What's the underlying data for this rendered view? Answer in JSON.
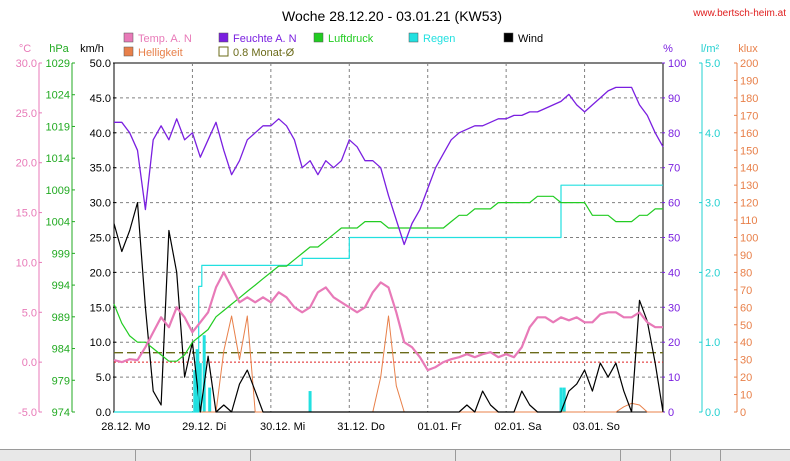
{
  "watermark": "www.bertsch-heim.at",
  "colors": {
    "temp": "#e87ab8",
    "humidity": "#7a1fe0",
    "pressure": "#22cc22",
    "rain": "#22e0e0",
    "wind": "#000000",
    "brightness": "#e8804a",
    "monthavg": "#6b6b1a",
    "grid": "#808080",
    "refline": "#e02020"
  },
  "axis_titles": {
    "temp": "°C",
    "pressure": "hPa",
    "wind": "km/h",
    "humidity": "%",
    "rain": "l/m²",
    "brightness": "klux"
  },
  "chart_data": {
    "type": "line",
    "title": "Woche 28.12.20 - 03.01.21 (KW53)",
    "legend": [
      {
        "key": "temp",
        "label": "Temp. A. N",
        "marker": "filled"
      },
      {
        "key": "humidity",
        "label": "Feuchte A. N",
        "marker": "filled"
      },
      {
        "key": "pressure",
        "label": "Luftdruck",
        "marker": "filled"
      },
      {
        "key": "rain",
        "label": "Regen",
        "marker": "filled"
      },
      {
        "key": "wind",
        "label": "Wind",
        "marker": "filled"
      },
      {
        "key": "brightness",
        "label": "Helligkeit",
        "marker": "filled"
      },
      {
        "key": "monthavg",
        "label": "0.8 Monat-Ø",
        "marker": "outline"
      }
    ],
    "x_ticks": [
      "28.12. Mo",
      "29.12. Di",
      "30.12. Mi",
      "31.12. Do",
      "01.01. Fr",
      "02.01. Sa",
      "03.01. So"
    ],
    "axes": {
      "temp": {
        "range": [
          -5.0,
          30.0
        ],
        "ticks": [
          "30.0",
          "25.0",
          "20.0",
          "15.0",
          "10.0",
          "5.0",
          "0.0",
          "-5.0"
        ]
      },
      "pressure": {
        "range": [
          974,
          1029
        ],
        "ticks": [
          "1029",
          "1024",
          "1019",
          "1014",
          "1009",
          "1004",
          "999",
          "994",
          "989",
          "984",
          "979",
          "974"
        ]
      },
      "wind": {
        "range": [
          0.0,
          50.0
        ],
        "ticks": [
          "50.0",
          "45.0",
          "40.0",
          "35.0",
          "30.0",
          "25.0",
          "20.0",
          "15.0",
          "10.0",
          "5.0",
          "0.0"
        ]
      },
      "humidity": {
        "range": [
          0,
          100
        ],
        "ticks": [
          "100",
          "90",
          "80",
          "70",
          "60",
          "50",
          "40",
          "30",
          "20",
          "10",
          "0"
        ]
      },
      "rain": {
        "range": [
          0.0,
          5.0
        ],
        "ticks": [
          "5.0",
          "4.0",
          "3.0",
          "2.0",
          "1.0",
          "0.0"
        ]
      },
      "brightness": {
        "range": [
          0,
          200
        ],
        "ticks": [
          "200",
          "190",
          "180",
          "170",
          "160",
          "150",
          "140",
          "130",
          "120",
          "110",
          "100",
          "90",
          "80",
          "70",
          "60",
          "50",
          "40",
          "30",
          "20",
          "10",
          "0"
        ]
      }
    },
    "grid": true,
    "reference_lines": {
      "temp_zero": 0.0,
      "monthly_avg_wind": 8.5
    },
    "series": [
      {
        "key": "humidity",
        "axis": "humidity",
        "x_days": [
          0,
          0.1,
          0.2,
          0.3,
          0.4,
          0.5,
          0.6,
          0.7,
          0.8,
          0.9,
          1.0,
          1.1,
          1.2,
          1.3,
          1.4,
          1.5,
          1.6,
          1.7,
          1.8,
          1.9,
          2.0,
          2.1,
          2.2,
          2.3,
          2.4,
          2.5,
          2.6,
          2.7,
          2.8,
          2.9,
          3.0,
          3.1,
          3.2,
          3.3,
          3.4,
          3.5,
          3.6,
          3.7,
          3.8,
          3.9,
          4.0,
          4.1,
          4.2,
          4.3,
          4.4,
          4.5,
          4.6,
          4.7,
          4.8,
          4.9,
          5.0,
          5.1,
          5.2,
          5.3,
          5.4,
          5.5,
          5.6,
          5.7,
          5.8,
          5.9,
          6.0,
          6.1,
          6.2,
          6.3,
          6.4,
          6.5,
          6.6,
          6.7,
          6.8,
          6.9,
          7.0
        ],
        "values": [
          83,
          83,
          80,
          75,
          58,
          78,
          82,
          78,
          84,
          78,
          80,
          73,
          78,
          83,
          75,
          68,
          72,
          78,
          80,
          82,
          82,
          84,
          82,
          78,
          70,
          72,
          68,
          72,
          70,
          72,
          78,
          76,
          72,
          72,
          70,
          62,
          55,
          48,
          54,
          58,
          64,
          70,
          74,
          78,
          80,
          81,
          82,
          82,
          83,
          84,
          84,
          85,
          85,
          86,
          86,
          87,
          88,
          89,
          91,
          88,
          86,
          88,
          90,
          92,
          93,
          93,
          93,
          88,
          85,
          80,
          76
        ]
      },
      {
        "key": "pressure",
        "axis": "pressure",
        "x_days": [
          0,
          0.1,
          0.2,
          0.3,
          0.4,
          0.5,
          0.6,
          0.7,
          0.8,
          0.9,
          1.0,
          1.1,
          1.2,
          1.3,
          1.4,
          1.5,
          1.6,
          1.7,
          1.8,
          1.9,
          2.0,
          2.1,
          2.2,
          2.3,
          2.4,
          2.5,
          2.6,
          2.7,
          2.8,
          2.9,
          3.0,
          3.1,
          3.2,
          3.3,
          3.4,
          3.5,
          3.6,
          3.7,
          3.8,
          3.9,
          4.0,
          4.1,
          4.2,
          4.3,
          4.4,
          4.5,
          4.6,
          4.7,
          4.8,
          4.9,
          5.0,
          5.1,
          5.2,
          5.3,
          5.4,
          5.5,
          5.6,
          5.7,
          5.8,
          5.9,
          6.0,
          6.1,
          6.2,
          6.3,
          6.4,
          6.5,
          6.6,
          6.7,
          6.8,
          6.9,
          7.0
        ],
        "values": [
          991,
          988,
          986,
          985,
          985,
          984,
          983,
          982,
          982,
          983,
          985,
          986,
          987,
          989,
          990,
          991,
          992,
          993,
          994,
          995,
          996,
          997,
          997,
          998,
          999,
          1000,
          1000,
          1001,
          1002,
          1003,
          1003,
          1003,
          1004,
          1004,
          1004,
          1003,
          1003,
          1003,
          1003,
          1003,
          1003,
          1003,
          1003,
          1004,
          1005,
          1005,
          1006,
          1006,
          1006,
          1007,
          1007,
          1007,
          1007,
          1007,
          1008,
          1008,
          1008,
          1007,
          1007,
          1007,
          1007,
          1005,
          1005,
          1005,
          1004,
          1004,
          1004,
          1005,
          1005,
          1006,
          1006
        ]
      },
      {
        "key": "temp",
        "axis": "temp",
        "x_days": [
          0,
          0.1,
          0.2,
          0.3,
          0.4,
          0.5,
          0.6,
          0.7,
          0.8,
          0.9,
          1.0,
          1.1,
          1.2,
          1.3,
          1.4,
          1.5,
          1.6,
          1.7,
          1.8,
          1.9,
          2.0,
          2.1,
          2.2,
          2.3,
          2.4,
          2.5,
          2.6,
          2.7,
          2.8,
          2.9,
          3.0,
          3.1,
          3.2,
          3.3,
          3.4,
          3.5,
          3.6,
          3.7,
          3.8,
          3.9,
          4.0,
          4.1,
          4.2,
          4.3,
          4.4,
          4.5,
          4.6,
          4.7,
          4.8,
          4.9,
          5.0,
          5.1,
          5.2,
          5.3,
          5.4,
          5.5,
          5.6,
          5.7,
          5.8,
          5.9,
          6.0,
          6.1,
          6.2,
          6.3,
          6.4,
          6.5,
          6.6,
          6.7,
          6.8,
          6.9,
          7.0
        ],
        "values": [
          0.2,
          0.0,
          0.3,
          0.2,
          1.5,
          3.0,
          4.5,
          3.5,
          5.5,
          4.5,
          3.0,
          4.0,
          5.0,
          7.5,
          9.0,
          7.5,
          6.0,
          6.5,
          6.0,
          6.5,
          6.0,
          7.0,
          6.5,
          5.5,
          5.0,
          5.5,
          7.0,
          7.5,
          6.5,
          6.0,
          5.5,
          5.0,
          5.5,
          7.0,
          8.0,
          7.5,
          5.0,
          2.0,
          1.5,
          0.5,
          -0.8,
          -0.5,
          0.0,
          0.3,
          0.5,
          0.8,
          0.5,
          0.8,
          1.0,
          0.5,
          0.8,
          0.5,
          1.5,
          3.5,
          4.5,
          4.5,
          4.0,
          4.5,
          4.2,
          4.5,
          4.0,
          4.0,
          4.8,
          5.0,
          5.0,
          4.5,
          4.5,
          5.0,
          4.0,
          3.5,
          3.5
        ]
      },
      {
        "key": "wind",
        "axis": "wind",
        "x_days": [
          0,
          0.1,
          0.2,
          0.3,
          0.4,
          0.5,
          0.6,
          0.7,
          0.8,
          0.9,
          1.0,
          1.1,
          1.2,
          1.3,
          1.4,
          1.5,
          1.6,
          1.7,
          1.8,
          1.9,
          2.0,
          2.1,
          2.2,
          2.3,
          2.4,
          2.5,
          2.6,
          2.7,
          2.8,
          2.9,
          3.0,
          3.1,
          3.2,
          3.3,
          3.4,
          3.5,
          3.6,
          3.7,
          3.8,
          3.9,
          4.0,
          4.1,
          4.2,
          4.3,
          4.4,
          4.5,
          4.6,
          4.7,
          4.8,
          4.9,
          5.0,
          5.1,
          5.2,
          5.3,
          5.4,
          5.5,
          5.6,
          5.7,
          5.8,
          5.9,
          6.0,
          6.1,
          6.2,
          6.3,
          6.4,
          6.5,
          6.6,
          6.7,
          6.8,
          6.9,
          7.0
        ],
        "values": [
          27,
          23,
          26,
          30,
          15,
          3,
          1,
          26,
          20,
          5,
          10,
          0,
          8,
          0,
          1,
          0,
          4,
          6,
          3,
          0,
          0,
          0,
          0,
          0,
          0,
          0,
          0,
          0,
          0,
          0,
          0,
          0,
          0,
          0,
          0,
          0,
          0,
          0,
          0,
          0,
          0,
          0,
          0,
          0,
          0,
          1,
          0,
          3,
          1,
          0,
          0,
          0,
          3,
          1,
          0,
          0,
          0,
          0,
          3,
          4,
          6,
          3,
          7,
          5,
          7,
          3,
          0,
          16,
          13,
          7,
          0
        ]
      },
      {
        "key": "brightness",
        "axis": "brightness",
        "x_days": [
          0,
          0.1,
          0.2,
          0.3,
          0.4,
          0.5,
          0.6,
          0.7,
          0.8,
          0.9,
          1.0,
          1.1,
          1.2,
          1.3,
          1.4,
          1.5,
          1.6,
          1.7,
          1.8,
          1.9,
          2.0,
          2.1,
          2.2,
          2.3,
          2.4,
          2.5,
          2.6,
          2.7,
          2.8,
          2.9,
          3.0,
          3.1,
          3.2,
          3.3,
          3.4,
          3.5,
          3.6,
          3.7,
          3.8,
          3.9,
          4.0,
          4.1,
          4.2,
          4.3,
          4.4,
          4.5,
          4.6,
          4.7,
          4.8,
          4.9,
          5.0,
          5.1,
          5.2,
          5.3,
          5.4,
          5.5,
          5.6,
          5.7,
          5.8,
          5.9,
          6.0,
          6.1,
          6.2,
          6.3,
          6.4,
          6.5,
          6.6,
          6.7,
          6.8,
          6.9,
          7.0
        ],
        "values": [
          0,
          0,
          0,
          0,
          0,
          0,
          0,
          0,
          0,
          0,
          0,
          0,
          0,
          0,
          35,
          55,
          30,
          55,
          0,
          0,
          0,
          0,
          0,
          0,
          0,
          0,
          0,
          0,
          0,
          0,
          0,
          0,
          0,
          0,
          20,
          55,
          15,
          0,
          0,
          0,
          0,
          0,
          0,
          0,
          0,
          0,
          0,
          0,
          0,
          0,
          0,
          0,
          0,
          0,
          0,
          0,
          0,
          0,
          0,
          0,
          0,
          0,
          0,
          0,
          0,
          3,
          5,
          4,
          0,
          0,
          0
        ]
      },
      {
        "key": "rain",
        "axis": "rain",
        "step": true,
        "x_days": [
          0,
          1.08,
          1.08,
          1.12,
          1.12,
          2.4,
          2.4,
          3.0,
          3.0,
          5.2,
          5.2,
          5.7,
          5.7,
          7.0
        ],
        "values": [
          0,
          0,
          1.8,
          1.8,
          2.1,
          2.1,
          2.2,
          2.2,
          2.5,
          2.5,
          2.5,
          2.5,
          3.25,
          3.25
        ]
      }
    ],
    "rain_bars": {
      "axis": "rain",
      "x_days": [
        1.03,
        1.06,
        1.1,
        1.15,
        1.22,
        2.5,
        5.7,
        5.74
      ],
      "values": [
        0.6,
        0.9,
        0.7,
        1.1,
        0.35,
        0.3,
        0.35,
        0.35
      ]
    }
  }
}
